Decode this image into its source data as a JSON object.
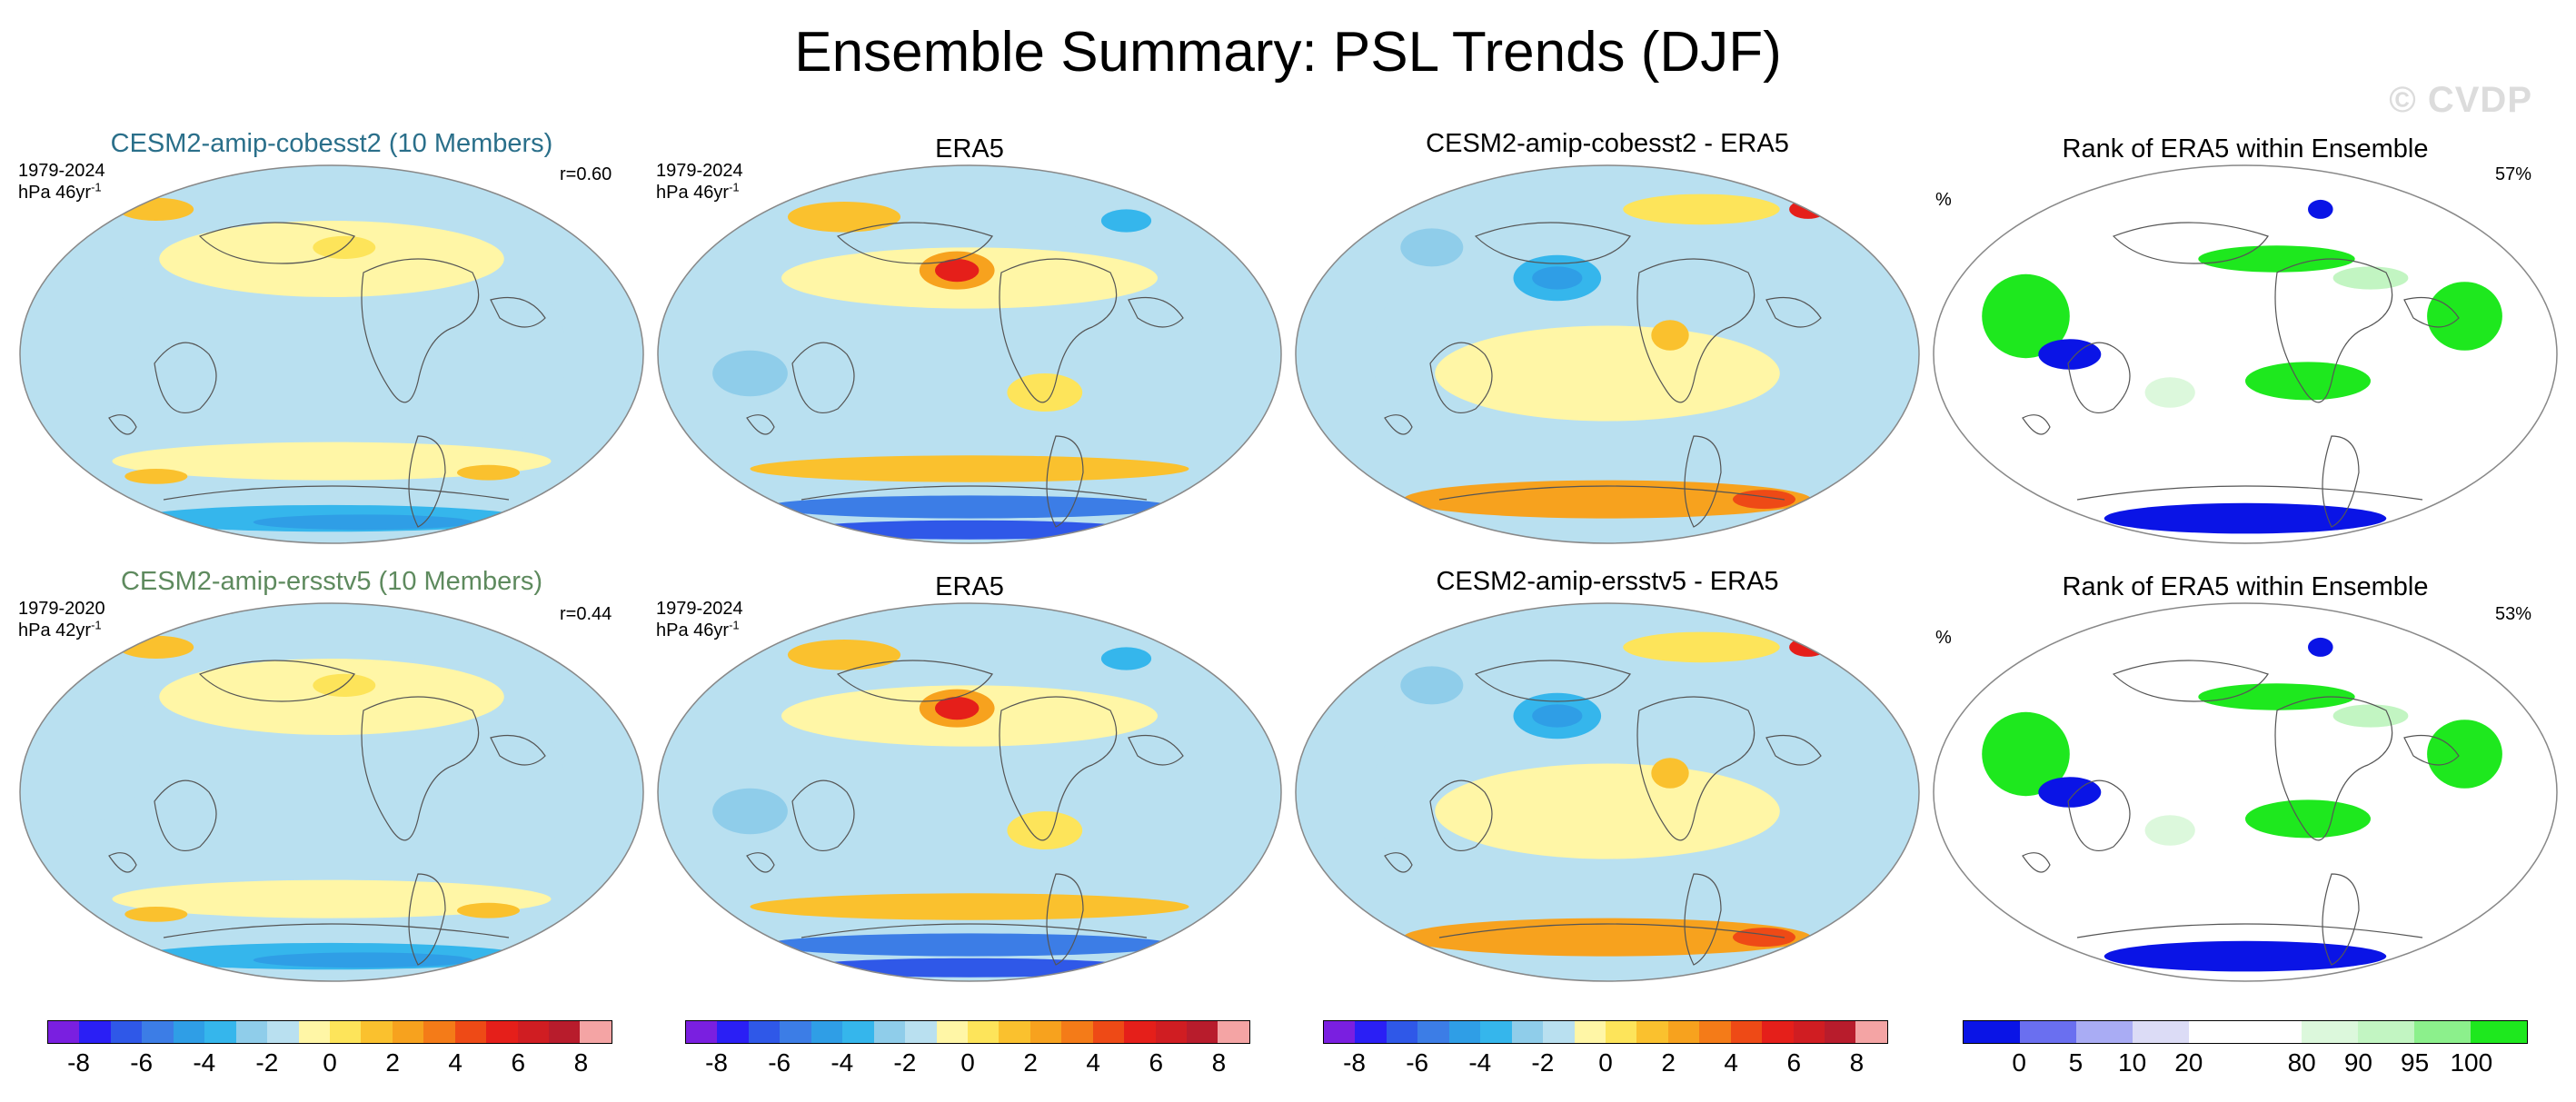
{
  "title": "Ensemble Summary: PSL Trends (DJF)",
  "watermark": "© CVDP",
  "colors": {
    "diverging": [
      "#7a1fe0",
      "#2a1ff5",
      "#2f58e8",
      "#3c7de6",
      "#2f9ee6",
      "#35b6ec",
      "#8fcdea",
      "#b9e0f0",
      "#fff6a6",
      "#fde45a",
      "#fac12e",
      "#f7a21e",
      "#f47b18",
      "#ee4a16",
      "#e51f1a",
      "#d01d22",
      "#b81c2c",
      "#f4a4a4"
    ],
    "rank": [
      "#0a14e6",
      "#6a6ff0",
      "#a9acf4",
      "#dcdcf6",
      "#ffffff",
      "#ffffff",
      "#dcf8dc",
      "#c2f5c2",
      "#8cf08c",
      "#1ee81e"
    ]
  },
  "panels": [
    {
      "title": "CESM2-amip-cobesst2 (10 Members)",
      "title_color": "#2a6f8a",
      "years": "1979-2024",
      "units": "hPa 46yr",
      "units_sup": "-1",
      "corr": "r=0.60",
      "type": "model"
    },
    {
      "title": "ERA5",
      "title_color": "#000000",
      "years": "1979-2024",
      "units": "hPa 46yr",
      "units_sup": "-1",
      "corr": "",
      "type": "obs"
    },
    {
      "title": "CESM2-amip-cobesst2 - ERA5",
      "title_color": "#000000",
      "years": "",
      "units": "",
      "units_sup": "",
      "corr": "",
      "type": "diff"
    },
    {
      "title": "Rank of ERA5 within Ensemble",
      "title_color": "#000000",
      "years": "",
      "units": "%",
      "units_sup": "",
      "corr": "57%",
      "type": "rank"
    },
    {
      "title": "CESM2-amip-ersstv5 (10 Members)",
      "title_color": "#5e8a5e",
      "years": "1979-2020",
      "units": "hPa 42yr",
      "units_sup": "-1",
      "corr": "r=0.44",
      "type": "model"
    },
    {
      "title": "ERA5",
      "title_color": "#000000",
      "years": "1979-2024",
      "units": "hPa 46yr",
      "units_sup": "-1",
      "corr": "",
      "type": "obs"
    },
    {
      "title": "CESM2-amip-ersstv5 - ERA5",
      "title_color": "#000000",
      "years": "",
      "units": "",
      "units_sup": "",
      "corr": "",
      "type": "diff"
    },
    {
      "title": "Rank of ERA5 within Ensemble",
      "title_color": "#000000",
      "years": "",
      "units": "%",
      "units_sup": "",
      "corr": "53%",
      "type": "rank"
    }
  ],
  "colorbars": [
    {
      "labels": [
        "-8",
        "-6",
        "-4",
        "-2",
        "0",
        "2",
        "4",
        "6",
        "8"
      ]
    },
    {
      "labels": [
        "-8",
        "-6",
        "-4",
        "-2",
        "0",
        "2",
        "4",
        "6",
        "8"
      ]
    },
    {
      "labels": [
        "-8",
        "-6",
        "-4",
        "-2",
        "0",
        "2",
        "4",
        "6",
        "8"
      ]
    },
    {
      "labels": [
        "0",
        "5",
        "10",
        "20",
        "80",
        "90",
        "95",
        "100"
      ]
    }
  ]
}
